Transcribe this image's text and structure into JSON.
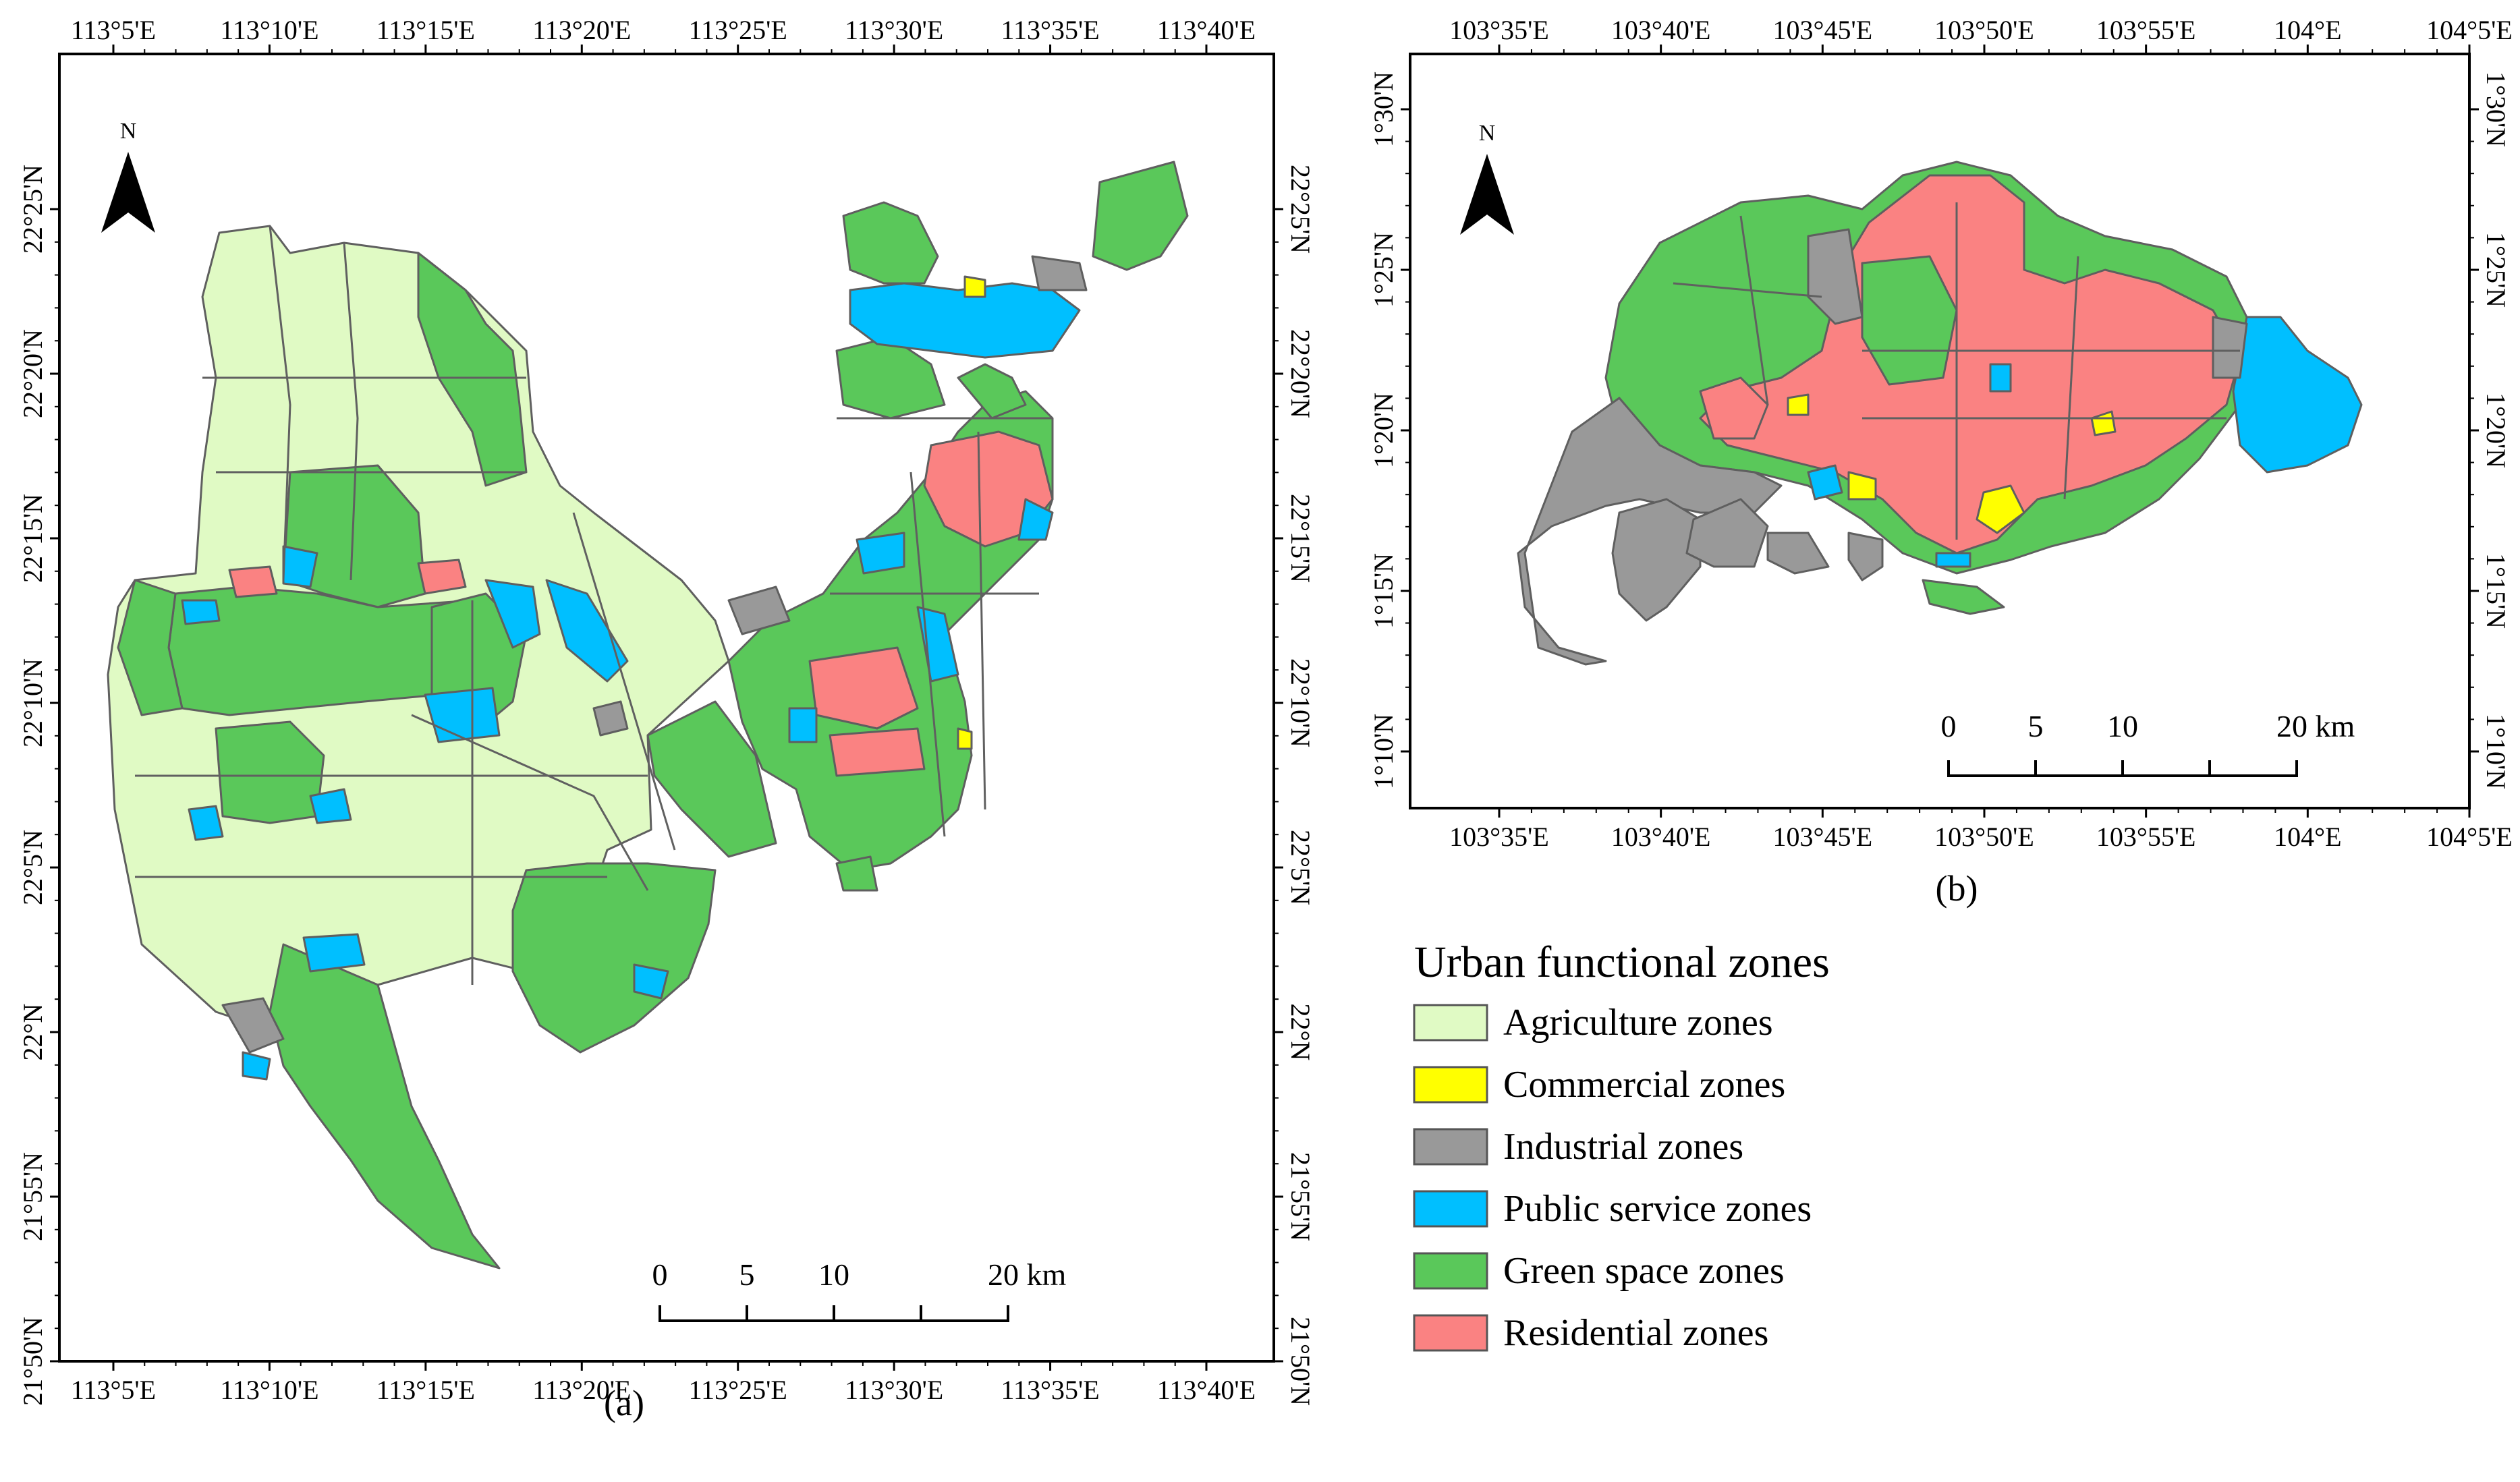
{
  "colors": {
    "agriculture": "#e0fac4",
    "commercial": "#ffff00",
    "industrial": "#999999",
    "public_service": "#00bfff",
    "green_space": "#5ac85a",
    "residential": "#fa8282",
    "frame": "#000000"
  },
  "map_a": {
    "caption": "(a)",
    "top_ticks": [
      "113°5'E",
      "113°10'E",
      "113°15'E",
      "113°20'E",
      "113°25'E",
      "113°30'E",
      "113°35'E",
      "113°40'E"
    ],
    "bottom_ticks": [
      "113°5'E",
      "113°10'E",
      "113°15'E",
      "113°20'E",
      "113°25'E",
      "113°30'E",
      "113°35'E",
      "113°40'E"
    ],
    "left_ticks": [
      "22°25'N",
      "22°20'N",
      "22°15'N",
      "22°10'N",
      "22°5'N",
      "22°N",
      "21°55'N",
      "21°50'N"
    ],
    "right_ticks": [
      "22°25'N",
      "22°20'N",
      "22°15'N",
      "22°10'N",
      "22°5'N",
      "22°N",
      "21°55'N",
      "21°50'N"
    ],
    "north_label": "N",
    "scale_labels": [
      "0",
      "5",
      "10",
      "20 km"
    ]
  },
  "map_b": {
    "caption": "(b)",
    "top_ticks": [
      "103°35'E",
      "103°40'E",
      "103°45'E",
      "103°50'E",
      "103°55'E",
      "104°E",
      "104°5'E"
    ],
    "bottom_ticks": [
      "103°35'E",
      "103°40'E",
      "103°45'E",
      "103°50'E",
      "103°55'E",
      "104°E",
      "104°5'E"
    ],
    "left_ticks": [
      "1°30'N",
      "1°25'N",
      "1°20'N",
      "1°15'N",
      "1°10'N"
    ],
    "right_ticks": [
      "1°30'N",
      "1°25'N",
      "1°20'N",
      "1°15'N",
      "1°10'N"
    ],
    "north_label": "N",
    "scale_labels": [
      "0",
      "5",
      "10",
      "20 km"
    ]
  },
  "legend": {
    "title": "Urban functional zones",
    "items": [
      {
        "label": "Agriculture zones",
        "color": "#e0fac4"
      },
      {
        "label": "Commercial zones",
        "color": "#ffff00"
      },
      {
        "label": "Industrial zones",
        "color": "#999999"
      },
      {
        "label": "Public service zones",
        "color": "#00bfff"
      },
      {
        "label": "Green space zones",
        "color": "#5ac85a"
      },
      {
        "label": "Residential zones",
        "color": "#fa8282"
      }
    ]
  }
}
